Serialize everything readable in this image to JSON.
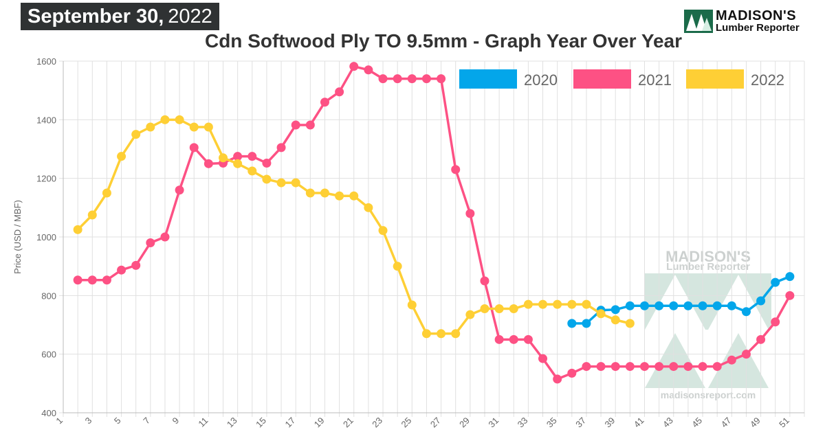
{
  "header": {
    "date_bold": "September 30,",
    "date_year": "2022"
  },
  "logo": {
    "line1": "MADISON'S",
    "line2": "Lumber Reporter"
  },
  "watermark": {
    "line1": "MADISON'S",
    "line2": "Lumber Reporter",
    "url": "madisonsreport.com"
  },
  "colors": {
    "2020": "#03a6ea",
    "2021": "#fd5184",
    "2022": "#fecf35",
    "grid": "#e0e0e0",
    "axis": "#555555"
  },
  "chart_data": {
    "type": "line",
    "title": "Cdn Softwood Ply TO 9.5mm - Graph Year Over Year",
    "xlabel": "",
    "ylabel": "Price (USD / MBF)",
    "xlim": [
      1,
      52
    ],
    "ylim": [
      400,
      1600
    ],
    "x_ticks": [
      1,
      3,
      5,
      7,
      9,
      11,
      13,
      15,
      17,
      19,
      21,
      23,
      25,
      27,
      29,
      31,
      33,
      35,
      37,
      39,
      41,
      43,
      45,
      47,
      49,
      51
    ],
    "y_ticks": [
      400,
      600,
      800,
      1000,
      1200,
      1400,
      1600
    ],
    "grid": true,
    "legend_position": "top-right",
    "series": [
      {
        "name": "2020",
        "color": "#03a6ea",
        "x": [
          36,
          37,
          38,
          39,
          40,
          41,
          42,
          43,
          44,
          45,
          46,
          47,
          48,
          49,
          50,
          51
        ],
        "values": [
          705,
          705,
          750,
          752,
          765,
          765,
          765,
          765,
          765,
          765,
          765,
          765,
          745,
          782,
          845,
          865
        ]
      },
      {
        "name": "2021",
        "color": "#fd5184",
        "x": [
          2,
          3,
          4,
          5,
          6,
          7,
          8,
          9,
          10,
          11,
          12,
          13,
          14,
          15,
          16,
          17,
          18,
          19,
          20,
          21,
          22,
          23,
          24,
          25,
          26,
          27,
          28,
          29,
          30,
          31,
          32,
          33,
          34,
          35,
          36,
          37,
          38,
          39,
          40,
          41,
          42,
          43,
          44,
          45,
          46,
          47,
          48,
          49,
          50,
          51
        ],
        "values": [
          853,
          853,
          853,
          887,
          903,
          980,
          1000,
          1160,
          1305,
          1250,
          1252,
          1275,
          1275,
          1252,
          1305,
          1382,
          1382,
          1460,
          1495,
          1582,
          1570,
          1540,
          1540,
          1540,
          1540,
          1540,
          1230,
          1080,
          850,
          650,
          650,
          650,
          585,
          515,
          535,
          558,
          558,
          558,
          558,
          558,
          558,
          558,
          558,
          558,
          558,
          580,
          600,
          650,
          710,
          800
        ]
      },
      {
        "name": "2022",
        "color": "#fecf35",
        "x": [
          2,
          3,
          4,
          5,
          6,
          7,
          8,
          9,
          10,
          11,
          12,
          13,
          14,
          15,
          16,
          17,
          18,
          19,
          20,
          21,
          22,
          23,
          24,
          25,
          26,
          27,
          28,
          29,
          30,
          31,
          32,
          33,
          34,
          35,
          36,
          37,
          38,
          39,
          40
        ],
        "values": [
          1025,
          1075,
          1150,
          1275,
          1350,
          1375,
          1400,
          1400,
          1375,
          1375,
          1270,
          1250,
          1225,
          1197,
          1185,
          1185,
          1150,
          1150,
          1140,
          1140,
          1100,
          1022,
          900,
          768,
          670,
          670,
          670,
          735,
          755,
          755,
          755,
          770,
          770,
          770,
          770,
          770,
          738,
          717,
          705
        ]
      }
    ]
  }
}
